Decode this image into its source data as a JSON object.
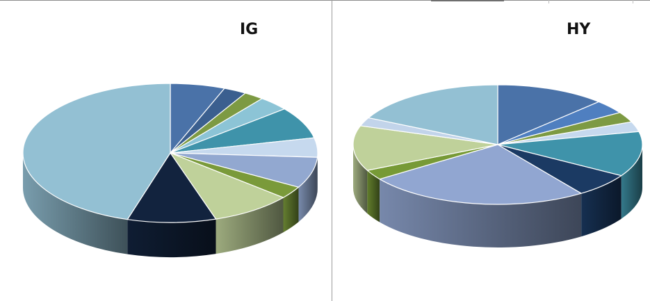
{
  "chart_data": [
    {
      "type": "pie",
      "style": "3d",
      "title": "IG",
      "start_angle_deg": 0,
      "direction": "clockwise",
      "slices": [
        {
          "value": 6.0,
          "color": "#4a72a8"
        },
        {
          "value": 2.5,
          "color": "#3b5f8f"
        },
        {
          "value": 2.2,
          "color": "#7d9a43"
        },
        {
          "value": 3.4,
          "color": "#8cc4d6"
        },
        {
          "value": 7.4,
          "color": "#3f93aa"
        },
        {
          "value": 4.5,
          "color": "#c6d9ee"
        },
        {
          "value": 7.2,
          "color": "#92a8d0"
        },
        {
          "value": 2.9,
          "color": "#7a9a3a"
        },
        {
          "value": 8.9,
          "color": "#bfd19a"
        },
        {
          "value": 9.7,
          "color": "#12233e"
        },
        {
          "value": 45.3,
          "color": "#93c0d3"
        }
      ]
    },
    {
      "type": "pie",
      "style": "3d",
      "title": "HY",
      "start_angle_deg": 0,
      "direction": "clockwise",
      "slices": [
        {
          "value": 12.3,
          "color": "#4a72a8"
        },
        {
          "value": 3.7,
          "color": "#4f7fc0"
        },
        {
          "value": 2.8,
          "color": "#7d9a43"
        },
        {
          "value": 2.7,
          "color": "#c6d9ee"
        },
        {
          "value": 12.2,
          "color": "#3f93aa"
        },
        {
          "value": 6.5,
          "color": "#1b3a63"
        },
        {
          "value": 25.0,
          "color": "#91a6d1"
        },
        {
          "value": 2.7,
          "color": "#779a36"
        },
        {
          "value": 12.2,
          "color": "#bfd19a"
        },
        {
          "value": 2.3,
          "color": "#c2d4ea"
        },
        {
          "value": 17.6,
          "color": "#93c0d3"
        }
      ]
    }
  ]
}
